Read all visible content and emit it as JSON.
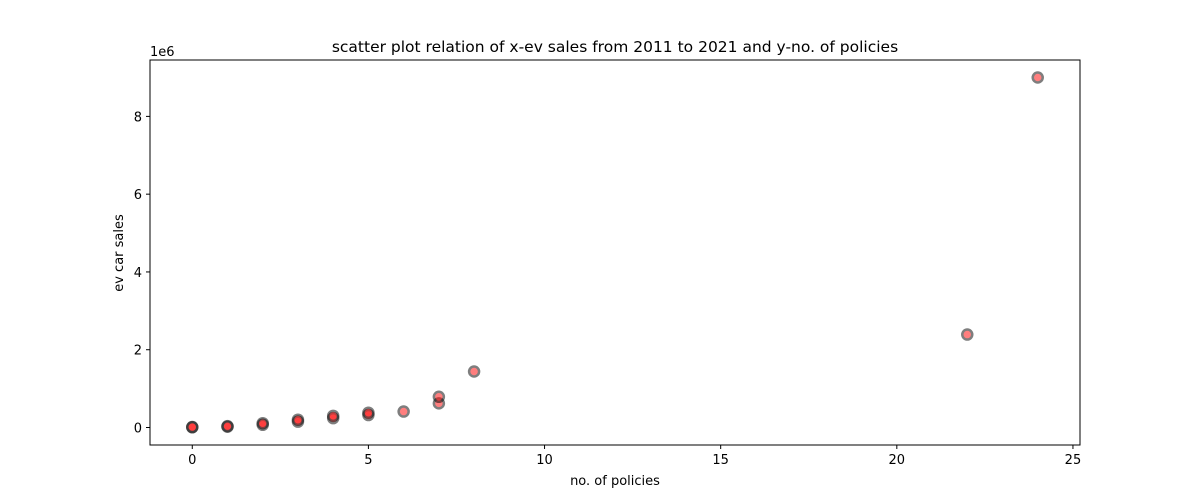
{
  "chart_data": {
    "type": "scatter",
    "title": "scatter plot relation of x-ev sales from 2011 to 2021 and y-no. of policies",
    "xlabel": "no. of policies",
    "ylabel": "ev car sales",
    "y_offset_label": "1e6",
    "xlim": [
      -1.2,
      25.2
    ],
    "ylim": [
      -450000,
      9450000
    ],
    "x_ticks": [
      0,
      5,
      10,
      15,
      20,
      25
    ],
    "x_tick_labels": [
      "0",
      "5",
      "10",
      "15",
      "20",
      "25"
    ],
    "y_ticks": [
      0,
      2000000,
      4000000,
      6000000,
      8000000
    ],
    "y_tick_labels": [
      "0",
      "2",
      "4",
      "6",
      "8"
    ],
    "grid": false,
    "marker_face_color": "#ff0000",
    "marker_edge_color": "#000000",
    "marker_alpha": 0.5,
    "points": [
      {
        "x": 0,
        "y": 5000
      },
      {
        "x": 0,
        "y": 12000
      },
      {
        "x": 1,
        "y": 20000
      },
      {
        "x": 1,
        "y": 35000
      },
      {
        "x": 2,
        "y": 70000
      },
      {
        "x": 2,
        "y": 110000
      },
      {
        "x": 3,
        "y": 150000
      },
      {
        "x": 3,
        "y": 200000
      },
      {
        "x": 4,
        "y": 240000
      },
      {
        "x": 4,
        "y": 300000
      },
      {
        "x": 5,
        "y": 320000
      },
      {
        "x": 5,
        "y": 380000
      },
      {
        "x": 6,
        "y": 410000
      },
      {
        "x": 7,
        "y": 620000
      },
      {
        "x": 7,
        "y": 790000
      },
      {
        "x": 8,
        "y": 1440000
      },
      {
        "x": 22,
        "y": 2390000
      },
      {
        "x": 24,
        "y": 9000000
      }
    ]
  }
}
